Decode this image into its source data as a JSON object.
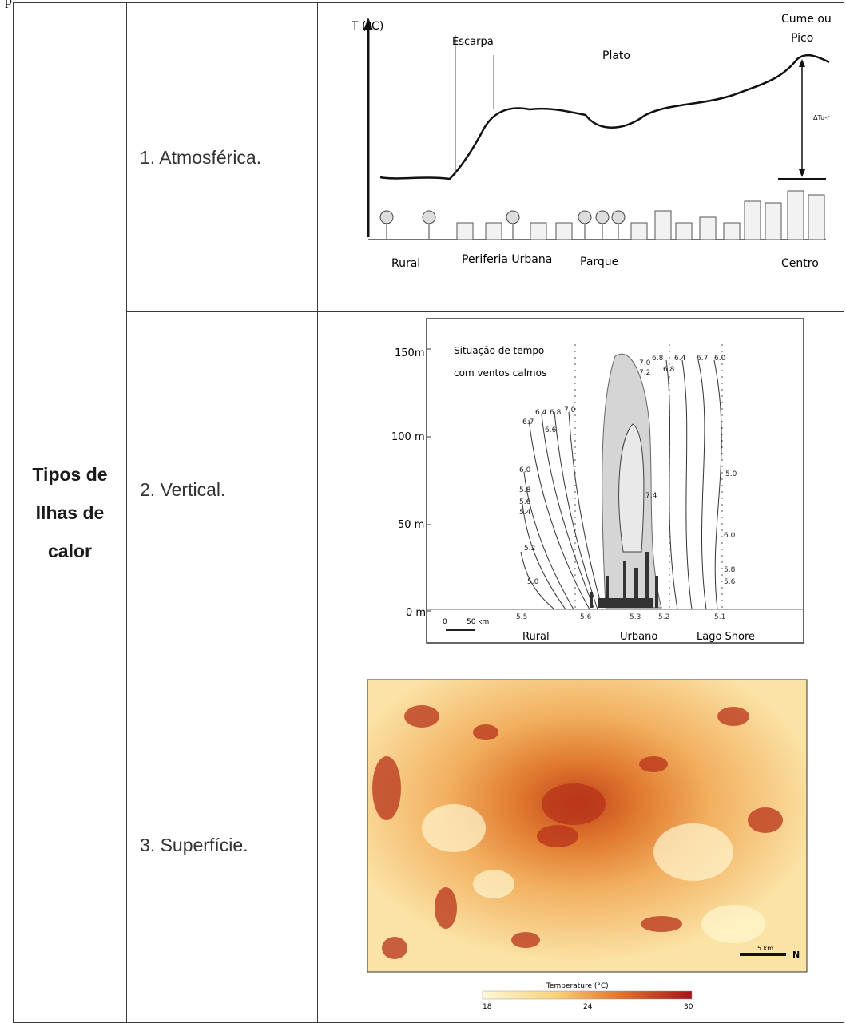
{
  "top_fragment": "p",
  "rowspan_title": {
    "line1": "Tipos de",
    "line2": "Ilhas de",
    "line3": "calor"
  },
  "rows": [
    {
      "label": "1. Atmosférica."
    },
    {
      "label": "2. Vertical."
    },
    {
      "label": "3. Superfície."
    }
  ],
  "fig1": {
    "ylabel": "T (ºC)",
    "escarpa": "Escarpa",
    "plato": "Plato",
    "cume_l1": "Cume ou",
    "cume_l2": "Pico",
    "delta": "ΔTu-r",
    "x_rural": "Rural",
    "x_periferia": "Periferia Urbana",
    "x_parque": "Parque",
    "x_centro": "Centro"
  },
  "fig2": {
    "y150": "150m",
    "y100": "100 m",
    "y50": "50 m",
    "y0": "0 m",
    "cond1": "Situação de tempo",
    "cond2": "com ventos calmos",
    "scale0": "0",
    "scale1": "50 km",
    "x_rural": "Rural",
    "x_urbano": "Urbano",
    "x_lago": "Lago Shore",
    "iso": [
      "6.7",
      "6.4",
      "6.8",
      "7.0",
      "6.6",
      "6.0",
      "5.8",
      "5.6",
      "5.4",
      "5.2",
      "5.0",
      "7.0",
      "7.2",
      "6.8",
      "6.4",
      "6.7",
      "6.0",
      "6.8",
      "7.4",
      "5.0",
      "6.0",
      "5.8",
      "5.6"
    ],
    "base": [
      "5.5",
      "5.6",
      "5.3",
      "5.2",
      "5.1"
    ]
  },
  "fig3": {
    "scale": "5 km",
    "north": "N",
    "legend_title": "Temperature (°C)",
    "t_min": "18",
    "t_mid": "24",
    "t_max": "30"
  }
}
